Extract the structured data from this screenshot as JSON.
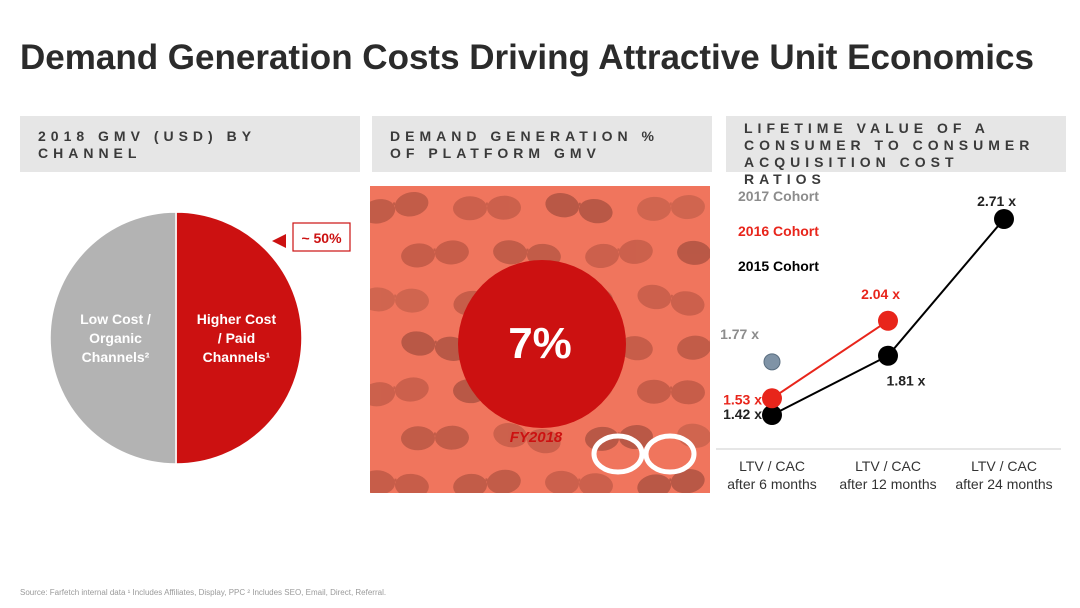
{
  "title": "Demand Generation Costs Driving Attractive Unit Economics",
  "panels": {
    "gmv_by_channel": "2018 GMV (USD) BY CHANNEL",
    "demand_gen": "DEMAND GENERATION % OF PLATFORM GMV",
    "ltv_cac": "LIFETIME VALUE OF A CONSUMER TO CONSUMER ACQUISITION COST RATIOS"
  },
  "pie_callout": "~ 50%",
  "demand_gen_value": "7%",
  "demand_gen_period": "FY2018",
  "colors": {
    "red": "#cc1111",
    "grey": "#b3b3b3",
    "black": "#000000",
    "cohort2017": "#7f93a6"
  },
  "source": "Source: Farfetch internal data ¹ Includes Affiliates, Display, PPC ² Includes SEO, Email, Direct, Referral.",
  "chart_data": [
    {
      "type": "pie",
      "slices": [
        {
          "label_lines": [
            "Higher Cost",
            "/ Paid",
            "Channels¹"
          ],
          "value": 50,
          "color": "#cc1111"
        },
        {
          "label_lines": [
            "Low Cost /",
            "Organic",
            "Channels²"
          ],
          "value": 50,
          "color": "#b3b3b3"
        }
      ]
    },
    {
      "type": "line",
      "categories": [
        [
          "LTV / CAC",
          "after 6 months"
        ],
        [
          "LTV / CAC",
          "after 12 months"
        ],
        [
          "LTV / CAC",
          "after 24 months"
        ]
      ],
      "ylim": [
        1.2,
        3.0
      ],
      "series": [
        {
          "name": "2017 Cohort",
          "color": "#7f93a6",
          "legend_color": "#8c8c8c",
          "values": [
            1.77,
            null,
            null
          ],
          "labels": [
            "1.77 x",
            null,
            null
          ]
        },
        {
          "name": "2016 Cohort",
          "color": "#e8251b",
          "legend_color": "#e8251b",
          "values": [
            1.53,
            2.04,
            null
          ],
          "labels": [
            "1.53 x",
            "2.04 x",
            null
          ]
        },
        {
          "name": "2015 Cohort",
          "color": "#000000",
          "legend_color": "#000000",
          "values": [
            1.42,
            1.81,
            2.71
          ],
          "labels": [
            "1.42 x",
            "1.81 x",
            "2.71 x"
          ]
        }
      ]
    }
  ]
}
